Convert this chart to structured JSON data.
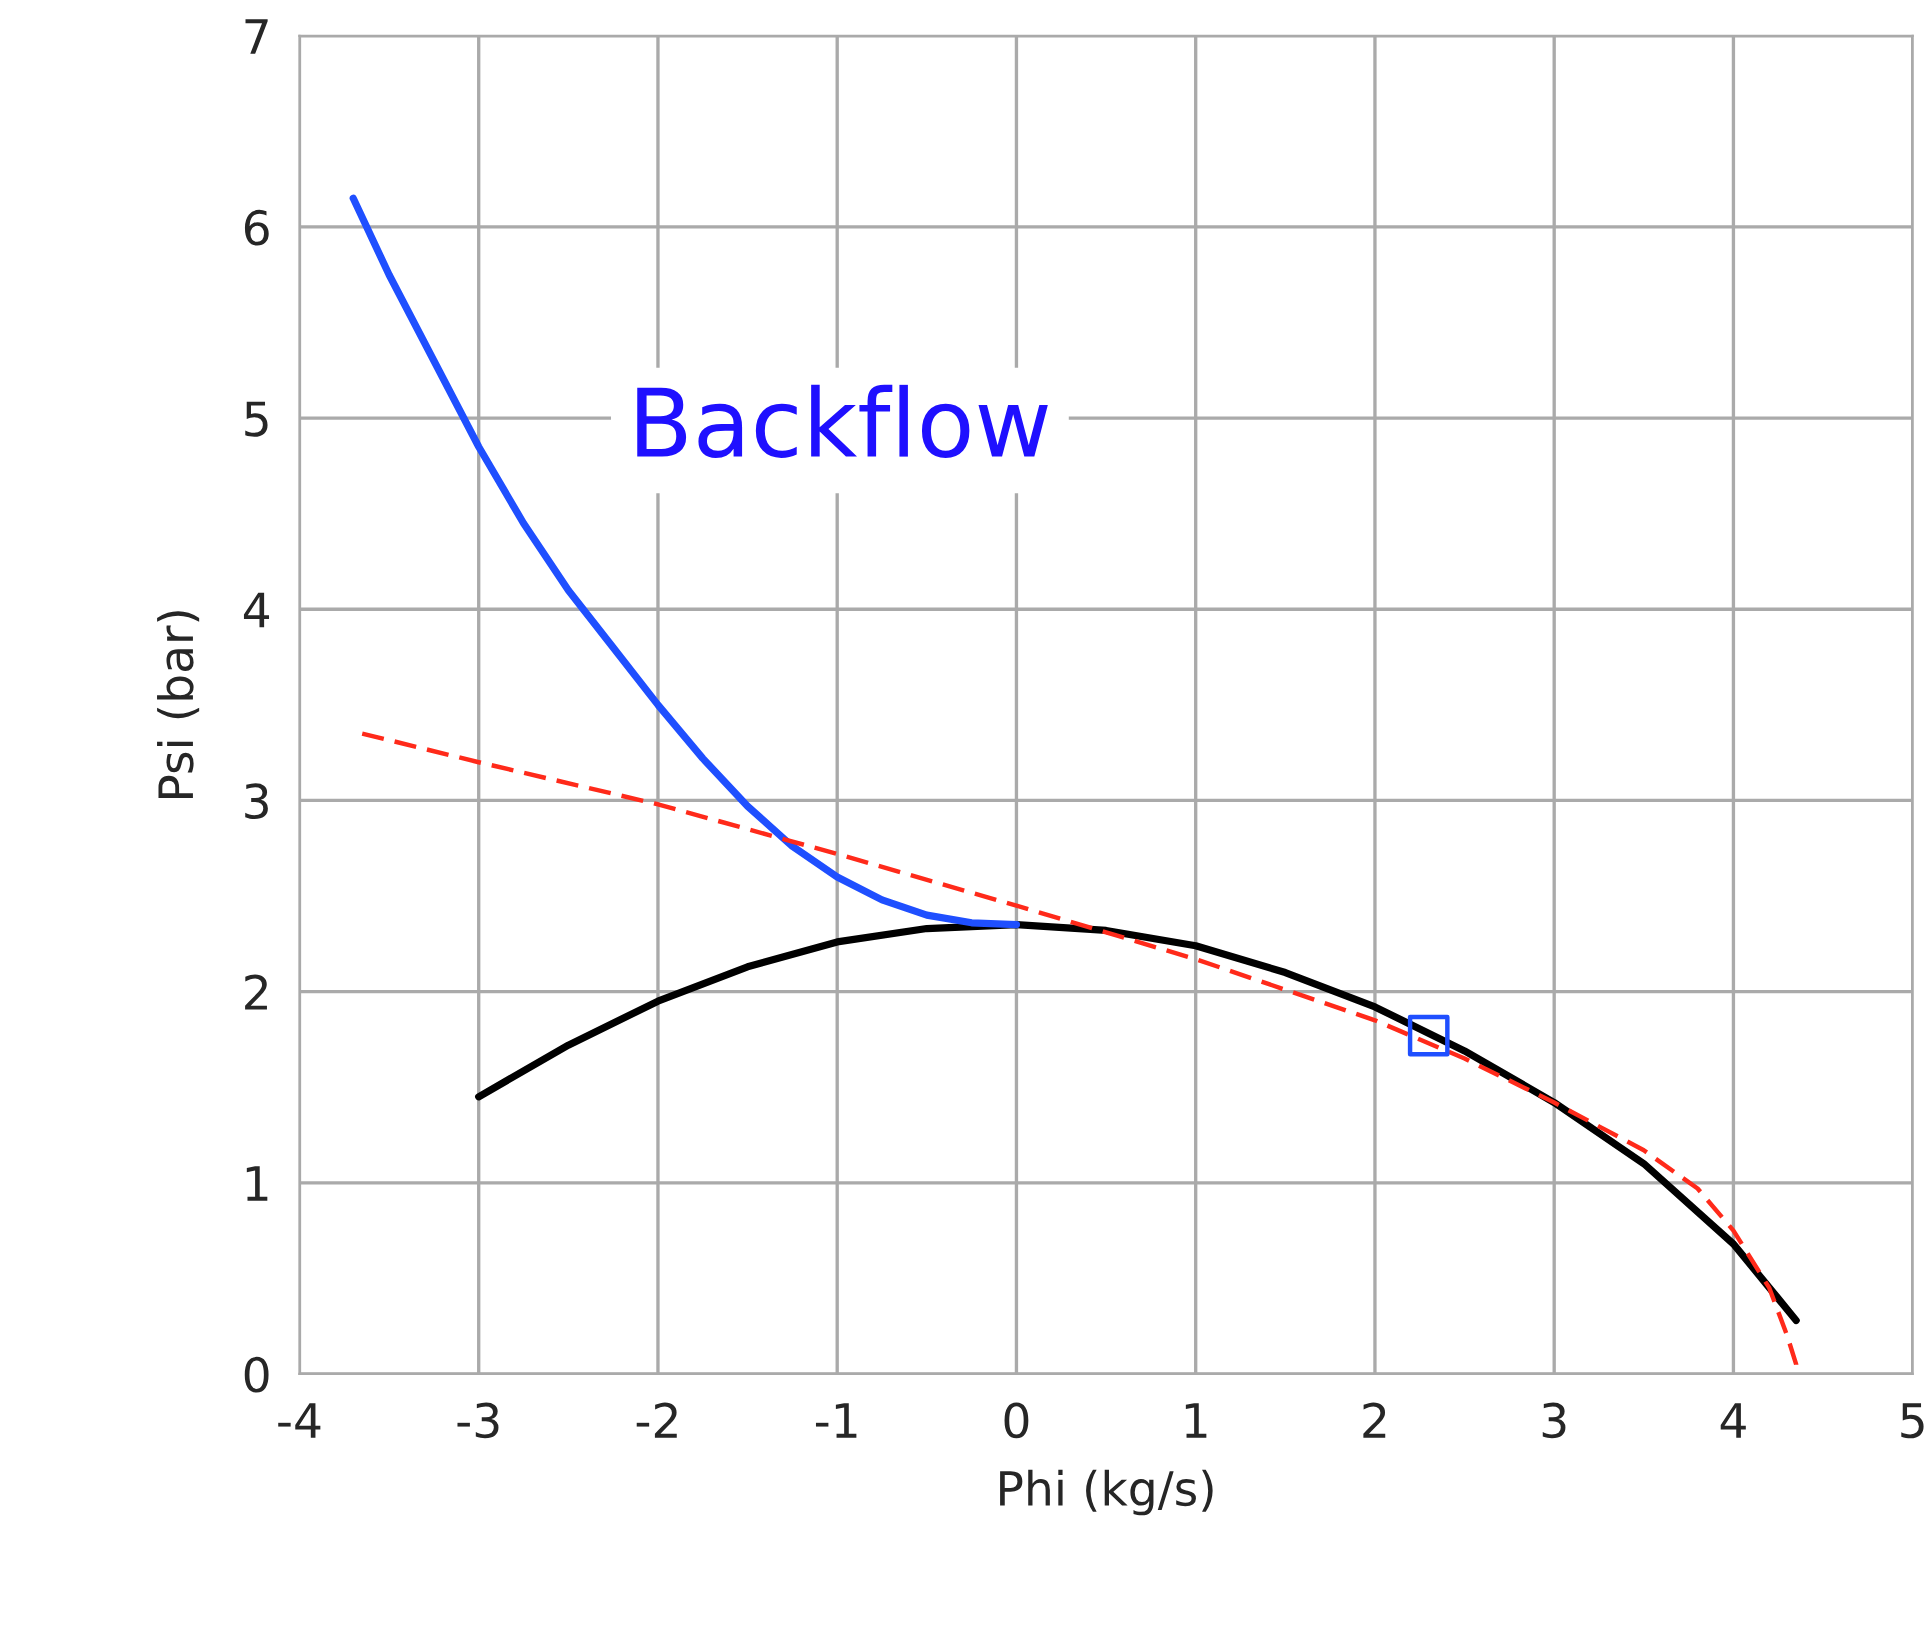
{
  "chart_data": {
    "type": "line",
    "xlabel": "Phi (kg/s)",
    "ylabel": "Psi (bar)",
    "annotations": [
      "Backflow"
    ],
    "xlim": [
      -4,
      5
    ],
    "ylim": [
      0,
      7
    ],
    "xticks": [
      -4,
      -3,
      -2,
      -1,
      0,
      1,
      2,
      3,
      4,
      5
    ],
    "yticks": [
      0,
      1,
      2,
      3,
      4,
      5,
      6,
      7
    ],
    "grid": true,
    "series": [
      {
        "color": "#1f4fff",
        "line_style": "solid",
        "x": [
          -3.7,
          -3.5,
          -3.25,
          -3,
          -2.75,
          -2.5,
          -2.25,
          -2,
          -1.75,
          -1.5,
          -1.25,
          -1,
          -0.75,
          -0.5,
          -0.25,
          0
        ],
        "values": [
          6.15,
          5.75,
          5.3,
          4.85,
          4.45,
          4.1,
          3.8,
          3.5,
          3.22,
          2.97,
          2.76,
          2.6,
          2.48,
          2.4,
          2.36,
          2.35
        ]
      },
      {
        "color": "#000000",
        "line_style": "solid",
        "x": [
          -3,
          -2.5,
          -2,
          -1.5,
          -1,
          -0.5,
          0,
          0.5,
          1,
          1.5,
          2,
          2.5,
          3,
          3.5,
          4,
          4.35
        ],
        "values": [
          1.45,
          1.72,
          1.95,
          2.13,
          2.26,
          2.33,
          2.35,
          2.32,
          2.24,
          2.1,
          1.92,
          1.69,
          1.42,
          1.1,
          0.68,
          0.28
        ]
      },
      {
        "color": "#ff2a1a",
        "line_style": "dashed",
        "x": [
          -3.65,
          -3,
          -2,
          -1,
          0,
          1,
          2,
          2.5,
          3,
          3.5,
          3.8,
          4,
          4.2,
          4.3,
          4.35,
          4.35
        ],
        "values": [
          3.35,
          3.2,
          2.98,
          2.72,
          2.45,
          2.17,
          1.85,
          1.65,
          1.42,
          1.17,
          0.97,
          0.75,
          0.45,
          0.2,
          0.05,
          0
        ]
      },
      {
        "type": "scatter",
        "marker": "square",
        "color": "#1f4fff",
        "x": [
          2.3
        ],
        "values": [
          1.77
        ]
      }
    ]
  }
}
